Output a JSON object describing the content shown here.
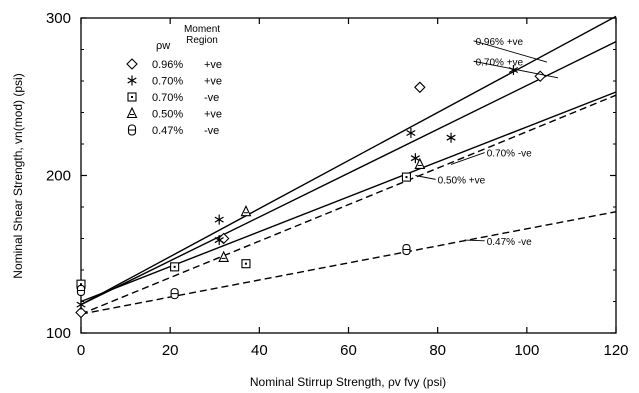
{
  "chart_data": {
    "type": "scatter",
    "xlabel": "Nominal Stirrup Strength, ρv fvy (psi)",
    "ylabel": "Nominal Shear Strength, vn(mod) (psi)",
    "xlim": [
      0,
      120
    ],
    "ylim": [
      100,
      300
    ],
    "x_ticks": [
      "0",
      "20",
      "40",
      "60",
      "80",
      "100",
      "120"
    ],
    "y_ticks": [
      "100",
      "200",
      "300"
    ],
    "grid": false,
    "legend": {
      "header_rho": "ρw",
      "header_moment": "Moment Region",
      "placement": "top-left"
    },
    "series": [
      {
        "name": "0.96%",
        "region": "+ve",
        "marker": "diamond",
        "points": [
          [
            0,
            113
          ],
          [
            32,
            160
          ],
          [
            76,
            256
          ],
          [
            103,
            263
          ]
        ],
        "fit": {
          "from": [
            0,
            118
          ],
          "to": [
            120,
            301
          ],
          "style": "solid",
          "label": "0.96% +ve"
        }
      },
      {
        "name": "0.70%",
        "region": "+ve",
        "marker": "asterisk",
        "points": [
          [
            0,
            118
          ],
          [
            31,
            172
          ],
          [
            31,
            159
          ],
          [
            74,
            227
          ],
          [
            75,
            211
          ],
          [
            83,
            224
          ],
          [
            97,
            267
          ]
        ],
        "fit": {
          "from": [
            0,
            118
          ],
          "to": [
            120,
            285
          ],
          "style": "solid",
          "label": "0.70% +ve"
        }
      },
      {
        "name": "0.70%",
        "region": "-ve",
        "marker": "square",
        "points": [
          [
            0,
            131
          ],
          [
            21,
            142
          ],
          [
            37,
            144
          ],
          [
            73,
            199
          ]
        ],
        "fit": {
          "from": [
            0,
            112
          ],
          "to": [
            120,
            251
          ],
          "style": "dashed",
          "label": "0.70% -ve"
        }
      },
      {
        "name": "0.50%",
        "region": "+ve",
        "marker": "triangle",
        "points": [
          [
            32,
            148
          ],
          [
            37,
            177
          ],
          [
            76,
            207
          ]
        ],
        "fit": {
          "from": [
            0,
            120
          ],
          "to": [
            120,
            253
          ],
          "style": "solid",
          "label": "0.50% +ve"
        }
      },
      {
        "name": "0.47%",
        "region": "-ve",
        "marker": "roundrect",
        "points": [
          [
            0,
            127
          ],
          [
            21,
            125
          ],
          [
            73,
            153
          ]
        ],
        "fit": {
          "from": [
            0,
            112
          ],
          "to": [
            120,
            177
          ],
          "style": "dashed",
          "label": "0.47% -ve"
        }
      }
    ]
  }
}
